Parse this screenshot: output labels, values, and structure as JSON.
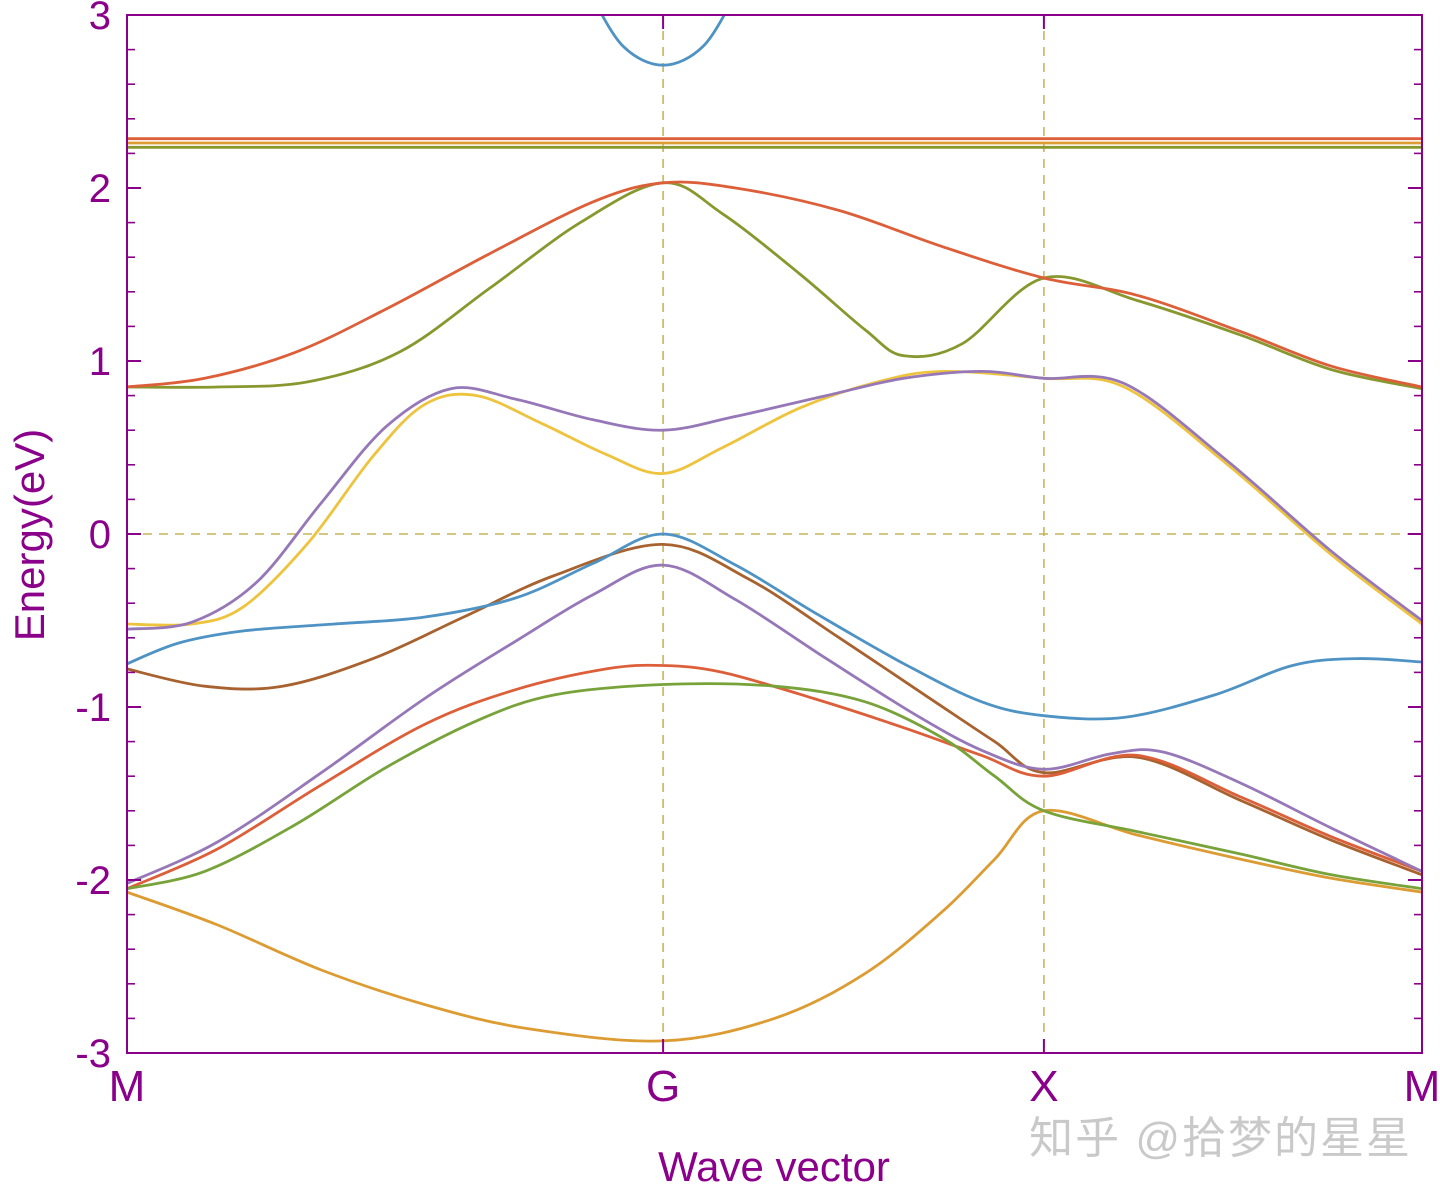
{
  "figure": {
    "watermark": "知乎 @拾梦的星星"
  },
  "chart_data": {
    "type": "line",
    "title": "",
    "xlabel": "Wave vector",
    "ylabel": "Energy(eV)",
    "ylim": [
      -3,
      3
    ],
    "yticks": [
      -3,
      -2,
      -1,
      0,
      1,
      2,
      3
    ],
    "y_minor_step": 0.2,
    "x_ticks": [
      {
        "label": "M",
        "pos": 0
      },
      {
        "label": "G",
        "pos": 0.414
      },
      {
        "label": "X",
        "pos": 0.708
      },
      {
        "label": "M",
        "pos": 1
      }
    ],
    "guides": {
      "vertical": [
        0.414,
        0.708
      ],
      "horizontal": [
        0
      ],
      "color": "#c9b45b"
    },
    "frame_color": "#8b008b",
    "label_color": "#8b008b",
    "line_width": 2.8,
    "bands": [
      {
        "name": "flat-band-olive",
        "color": "#88982f",
        "points": [
          [
            0,
            2.235
          ],
          [
            1,
            2.235
          ]
        ]
      },
      {
        "name": "flat-band-orange",
        "color": "#dd9c33",
        "points": [
          [
            0,
            2.26
          ],
          [
            1,
            2.26
          ]
        ]
      },
      {
        "name": "flat-band-red",
        "color": "#dd5f39",
        "points": [
          [
            0,
            2.285
          ],
          [
            1,
            2.285
          ]
        ]
      },
      {
        "name": "conduction-band-blue",
        "color": "#4f93c4",
        "points": [
          [
            0.358,
            3.12
          ],
          [
            0.383,
            2.82
          ],
          [
            0.414,
            2.71
          ],
          [
            0.445,
            2.82
          ],
          [
            0.47,
            3.12
          ]
        ]
      },
      {
        "name": "valence-olive",
        "color": "#88982f",
        "points": [
          [
            0,
            0.85
          ],
          [
            0.07,
            0.85
          ],
          [
            0.14,
            0.88
          ],
          [
            0.21,
            1.05
          ],
          [
            0.28,
            1.42
          ],
          [
            0.35,
            1.8
          ],
          [
            0.414,
            2.03
          ],
          [
            0.46,
            1.85
          ],
          [
            0.52,
            1.5
          ],
          [
            0.57,
            1.18
          ],
          [
            0.6,
            1.03
          ],
          [
            0.645,
            1.1
          ],
          [
            0.708,
            1.48
          ],
          [
            0.78,
            1.35
          ],
          [
            0.86,
            1.15
          ],
          [
            0.93,
            0.95
          ],
          [
            1,
            0.84
          ]
        ]
      },
      {
        "name": "valence-red-upper",
        "color": "#dd5f39",
        "points": [
          [
            0,
            0.85
          ],
          [
            0.06,
            0.9
          ],
          [
            0.13,
            1.05
          ],
          [
            0.2,
            1.3
          ],
          [
            0.28,
            1.62
          ],
          [
            0.36,
            1.92
          ],
          [
            0.414,
            2.03
          ],
          [
            0.47,
            2.0
          ],
          [
            0.55,
            1.87
          ],
          [
            0.63,
            1.66
          ],
          [
            0.708,
            1.48
          ],
          [
            0.78,
            1.38
          ],
          [
            0.86,
            1.17
          ],
          [
            0.93,
            0.97
          ],
          [
            1,
            0.85
          ]
        ]
      },
      {
        "name": "valence-yellow",
        "color": "#eec33e",
        "points": [
          [
            0,
            -0.52
          ],
          [
            0.05,
            -0.52
          ],
          [
            0.09,
            -0.42
          ],
          [
            0.14,
            -0.05
          ],
          [
            0.19,
            0.45
          ],
          [
            0.23,
            0.75
          ],
          [
            0.27,
            0.8
          ],
          [
            0.32,
            0.64
          ],
          [
            0.37,
            0.46
          ],
          [
            0.414,
            0.35
          ],
          [
            0.46,
            0.5
          ],
          [
            0.52,
            0.73
          ],
          [
            0.58,
            0.88
          ],
          [
            0.63,
            0.94
          ],
          [
            0.708,
            0.9
          ],
          [
            0.77,
            0.85
          ],
          [
            0.85,
            0.4
          ],
          [
            0.93,
            -0.12
          ],
          [
            1,
            -0.52
          ]
        ]
      },
      {
        "name": "valence-purple-upper",
        "color": "#9678b8",
        "points": [
          [
            0,
            -0.55
          ],
          [
            0.05,
            -0.51
          ],
          [
            0.1,
            -0.28
          ],
          [
            0.15,
            0.18
          ],
          [
            0.2,
            0.62
          ],
          [
            0.25,
            0.84
          ],
          [
            0.3,
            0.78
          ],
          [
            0.36,
            0.66
          ],
          [
            0.414,
            0.6
          ],
          [
            0.47,
            0.68
          ],
          [
            0.54,
            0.8
          ],
          [
            0.6,
            0.9
          ],
          [
            0.66,
            0.94
          ],
          [
            0.708,
            0.9
          ],
          [
            0.77,
            0.87
          ],
          [
            0.85,
            0.42
          ],
          [
            0.93,
            -0.1
          ],
          [
            1,
            -0.5
          ]
        ]
      },
      {
        "name": "valence-brown",
        "color": "#a8622f",
        "points": [
          [
            0,
            -0.78
          ],
          [
            0.06,
            -0.88
          ],
          [
            0.12,
            -0.88
          ],
          [
            0.19,
            -0.72
          ],
          [
            0.26,
            -0.48
          ],
          [
            0.33,
            -0.24
          ],
          [
            0.414,
            -0.06
          ],
          [
            0.48,
            -0.26
          ],
          [
            0.55,
            -0.6
          ],
          [
            0.62,
            -0.95
          ],
          [
            0.67,
            -1.2
          ],
          [
            0.708,
            -1.38
          ],
          [
            0.78,
            -1.29
          ],
          [
            0.86,
            -1.54
          ],
          [
            0.93,
            -1.77
          ],
          [
            1,
            -1.97
          ]
        ]
      },
      {
        "name": "valence-red-lower",
        "color": "#dd5f39",
        "points": [
          [
            0,
            -2.05
          ],
          [
            0.07,
            -1.82
          ],
          [
            0.15,
            -1.45
          ],
          [
            0.23,
            -1.1
          ],
          [
            0.3,
            -0.9
          ],
          [
            0.37,
            -0.78
          ],
          [
            0.414,
            -0.76
          ],
          [
            0.46,
            -0.8
          ],
          [
            0.53,
            -0.95
          ],
          [
            0.6,
            -1.12
          ],
          [
            0.66,
            -1.28
          ],
          [
            0.708,
            -1.4
          ],
          [
            0.78,
            -1.28
          ],
          [
            0.86,
            -1.52
          ],
          [
            0.93,
            -1.75
          ],
          [
            1,
            -1.95
          ]
        ]
      },
      {
        "name": "valence-orange-bottom",
        "color": "#dd9c33",
        "points": [
          [
            0,
            -2.07
          ],
          [
            0.07,
            -2.26
          ],
          [
            0.15,
            -2.52
          ],
          [
            0.23,
            -2.72
          ],
          [
            0.31,
            -2.86
          ],
          [
            0.414,
            -2.93
          ],
          [
            0.5,
            -2.8
          ],
          [
            0.57,
            -2.54
          ],
          [
            0.63,
            -2.18
          ],
          [
            0.67,
            -1.88
          ],
          [
            0.708,
            -1.6
          ],
          [
            0.78,
            -1.74
          ],
          [
            0.86,
            -1.88
          ],
          [
            0.93,
            -1.99
          ],
          [
            1,
            -2.07
          ]
        ]
      },
      {
        "name": "valence-green",
        "color": "#78a33a",
        "points": [
          [
            0,
            -2.05
          ],
          [
            0.06,
            -1.95
          ],
          [
            0.13,
            -1.68
          ],
          [
            0.2,
            -1.35
          ],
          [
            0.27,
            -1.08
          ],
          [
            0.33,
            -0.93
          ],
          [
            0.414,
            -0.87
          ],
          [
            0.5,
            -0.88
          ],
          [
            0.57,
            -0.97
          ],
          [
            0.63,
            -1.18
          ],
          [
            0.67,
            -1.4
          ],
          [
            0.708,
            -1.6
          ],
          [
            0.78,
            -1.72
          ],
          [
            0.86,
            -1.85
          ],
          [
            0.93,
            -1.97
          ],
          [
            1,
            -2.05
          ]
        ]
      },
      {
        "name": "valence-purple-lower",
        "color": "#9678b8",
        "points": [
          [
            0,
            -2.02
          ],
          [
            0.07,
            -1.78
          ],
          [
            0.15,
            -1.38
          ],
          [
            0.23,
            -0.95
          ],
          [
            0.3,
            -0.62
          ],
          [
            0.36,
            -0.35
          ],
          [
            0.414,
            -0.18
          ],
          [
            0.47,
            -0.38
          ],
          [
            0.54,
            -0.72
          ],
          [
            0.61,
            -1.05
          ],
          [
            0.66,
            -1.25
          ],
          [
            0.708,
            -1.36
          ],
          [
            0.76,
            -1.27
          ],
          [
            0.8,
            -1.26
          ],
          [
            0.86,
            -1.44
          ],
          [
            0.93,
            -1.7
          ],
          [
            1,
            -1.95
          ]
        ]
      },
      {
        "name": "valence-blue",
        "color": "#4f93c4",
        "points": [
          [
            0,
            -0.75
          ],
          [
            0.04,
            -0.63
          ],
          [
            0.09,
            -0.56
          ],
          [
            0.16,
            -0.52
          ],
          [
            0.23,
            -0.48
          ],
          [
            0.3,
            -0.37
          ],
          [
            0.36,
            -0.17
          ],
          [
            0.414,
            0.0
          ],
          [
            0.47,
            -0.18
          ],
          [
            0.53,
            -0.45
          ],
          [
            0.6,
            -0.75
          ],
          [
            0.66,
            -0.97
          ],
          [
            0.708,
            -1.05
          ],
          [
            0.77,
            -1.06
          ],
          [
            0.84,
            -0.93
          ],
          [
            0.9,
            -0.76
          ],
          [
            0.95,
            -0.72
          ],
          [
            1,
            -0.74
          ]
        ]
      }
    ]
  }
}
